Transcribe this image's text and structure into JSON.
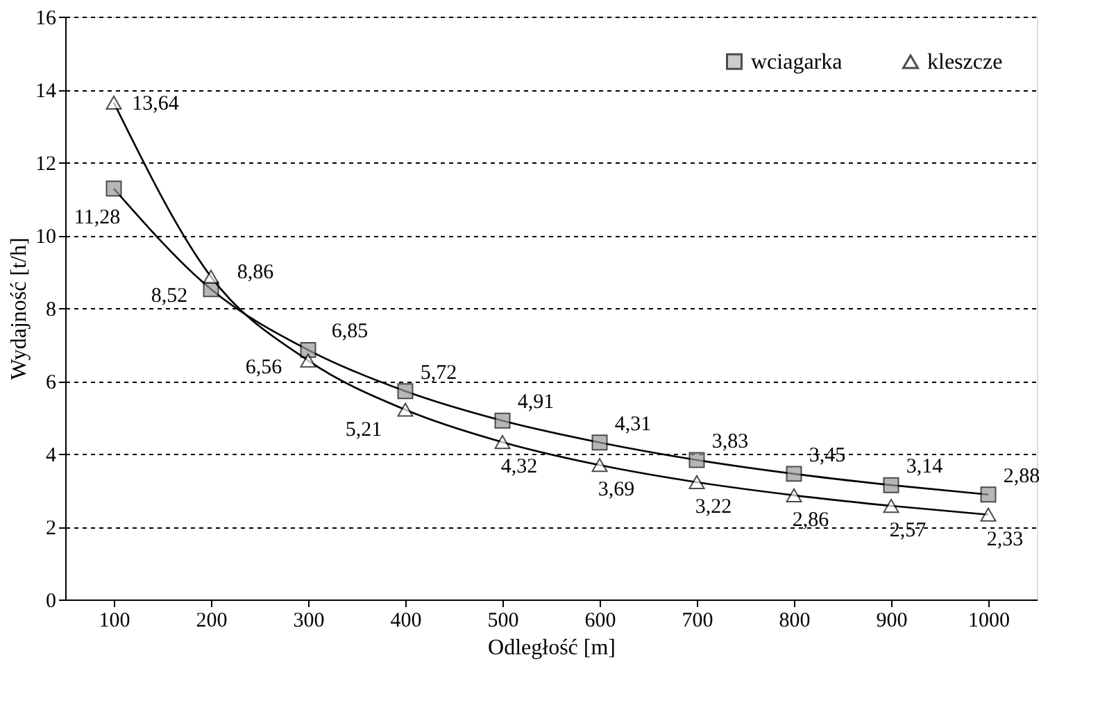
{
  "chart_data": {
    "type": "line",
    "xlabel": "Odległość [m]",
    "ylabel": "Wydajność  [t/h]",
    "categories": [
      "100",
      "200",
      "300",
      "400",
      "500",
      "600",
      "700",
      "800",
      "900",
      "1000"
    ],
    "ylim": [
      0,
      16
    ],
    "yticks": [
      0,
      2,
      4,
      6,
      8,
      10,
      12,
      14,
      16
    ],
    "grid": "y",
    "legend": "top right",
    "series": [
      {
        "name": "wciagarka",
        "color": "#000000",
        "marker": "square",
        "values": [
          11.28,
          8.52,
          6.85,
          5.72,
          4.91,
          4.31,
          3.83,
          3.45,
          3.14,
          2.88
        ],
        "value_labels": [
          "11,28",
          "8,52",
          "6,85",
          "5,72",
          "4,91",
          "4,31",
          "3,83",
          "3,45",
          "3,14",
          "2,88"
        ]
      },
      {
        "name": "kleszcze",
        "color": "#000000",
        "marker": "triangle",
        "values": [
          13.64,
          8.86,
          6.56,
          5.21,
          4.32,
          3.69,
          3.22,
          2.86,
          2.57,
          2.33
        ],
        "value_labels": [
          "13,64",
          "8,86",
          "6,56",
          "5,21",
          "4,32",
          "3,69",
          "3,22",
          "2,86",
          "2,57",
          "2,33"
        ]
      }
    ]
  }
}
